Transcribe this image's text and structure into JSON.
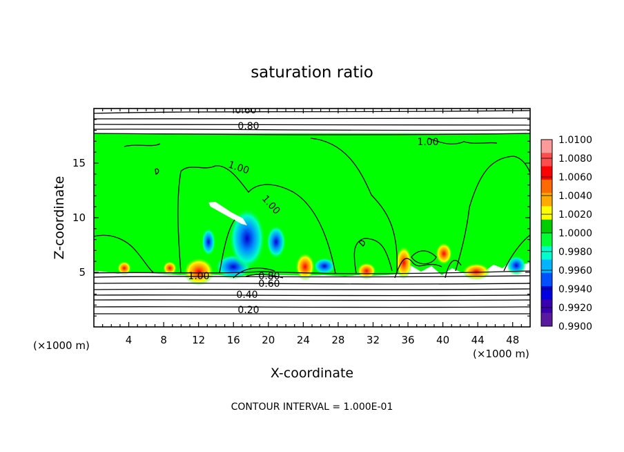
{
  "chart_data": {
    "type": "heatmap",
    "title": "saturation ratio",
    "xlabel": "X-coordinate",
    "ylabel": "Z-coordinate",
    "x_unit": "(×1000 m)",
    "y_unit": "(×1000 m)",
    "xlim": [
      0,
      50
    ],
    "ylim": [
      0,
      20
    ],
    "x_ticks": [
      "4",
      "8",
      "12",
      "16",
      "20",
      "24",
      "28",
      "32",
      "36",
      "40",
      "44",
      "48"
    ],
    "y_ticks": [
      "5",
      "10",
      "15"
    ],
    "footer": "CONTOUR INTERVAL = 1.000E-01",
    "colorbar": {
      "levels": [
        "1.0100",
        "1.0080",
        "1.0060",
        "1.0040",
        "1.0020",
        "1.0000",
        "0.9980",
        "0.9960",
        "0.9940",
        "0.9920",
        "0.9900"
      ],
      "colors": [
        "#ff9a9a",
        "#ff4d4d",
        "#ff0000",
        "#ff6a00",
        "#ffaa00",
        "#ffff00",
        "#00cc00",
        "#00ff33",
        "#00ffcc",
        "#00b4ff",
        "#0050ff",
        "#0000e0",
        "#3a00b0",
        "#5a1aa0"
      ]
    },
    "contour_labels": [
      "0.60",
      "0.80",
      "1.00",
      "1.00",
      "1.00",
      "1.00",
      "0.80",
      "0.60",
      "0.40",
      "0.20"
    ]
  }
}
